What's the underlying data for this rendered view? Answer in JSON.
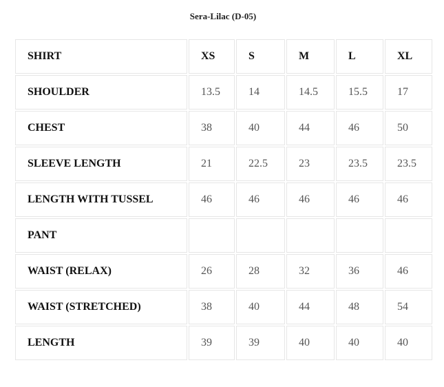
{
  "title": "Sera-Lilac (D-05)",
  "table": {
    "header": [
      "SHIRT",
      "XS",
      "S",
      "M",
      "L",
      "XL"
    ],
    "rows": [
      [
        "SHOULDER",
        "13.5",
        "14",
        "14.5",
        "15.5",
        "17"
      ],
      [
        "CHEST",
        "38",
        "40",
        "44",
        "46",
        "50"
      ],
      [
        "SLEEVE LENGTH",
        "21",
        "22.5",
        "23",
        "23.5",
        "23.5"
      ],
      [
        "LENGTH WITH TUSSEL",
        "46",
        "46",
        "46",
        "46",
        "46"
      ],
      [
        "PANT"
      ],
      [
        "WAIST (RELAX)",
        "26",
        "28",
        "32",
        "36",
        "46"
      ],
      [
        "WAIST (STRETCHED)",
        "38",
        "40",
        "44",
        "48",
        "54"
      ],
      [
        "LENGTH",
        "39",
        "39",
        "40",
        "40",
        "40"
      ]
    ]
  }
}
